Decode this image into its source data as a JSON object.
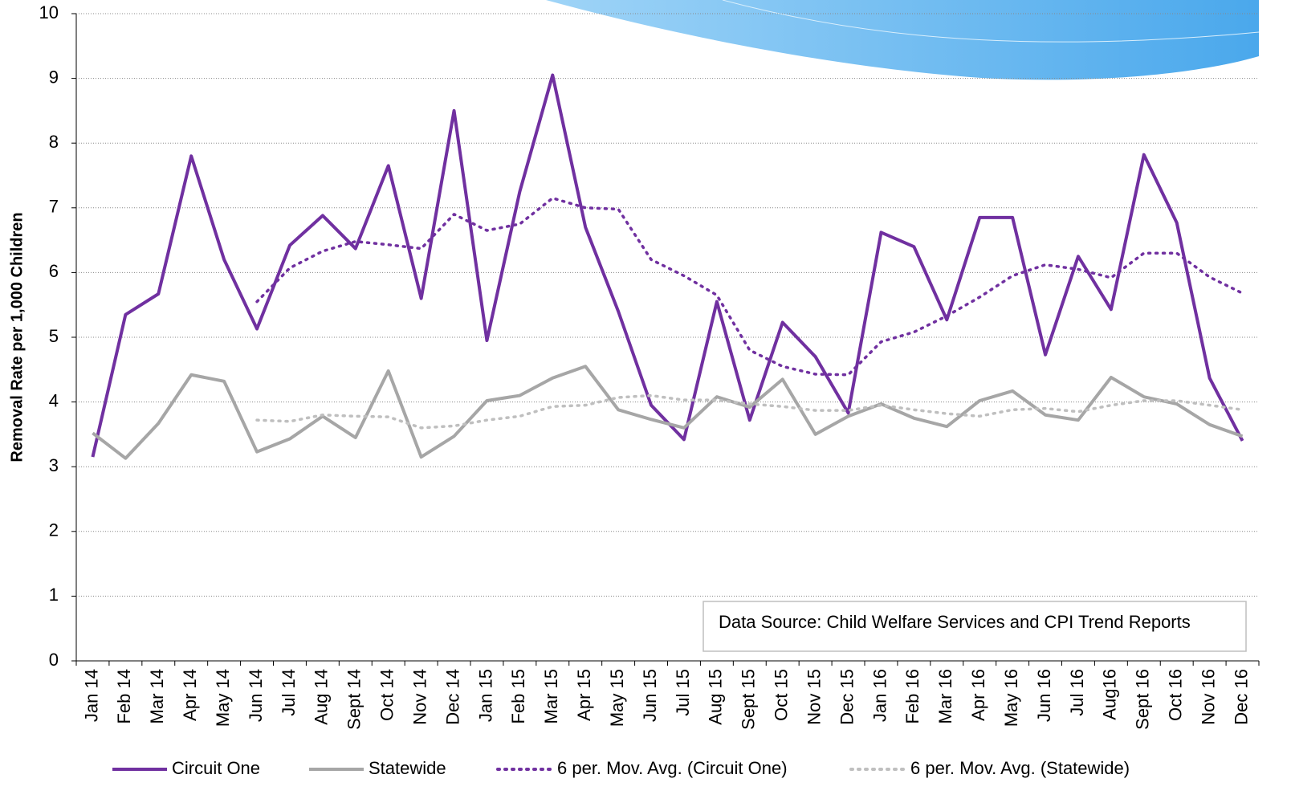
{
  "chart_data": {
    "type": "line",
    "y_label": "Removal Rate per 1,000 Children",
    "annotation": "Data Source:  Child Welfare Services and CPI Trend Reports",
    "categories": [
      "Jan 14",
      "Feb 14",
      "Mar 14",
      "Apr 14",
      "May 14",
      "Jun 14",
      "Jul 14",
      "Aug 14",
      "Sept 14",
      "Oct 14",
      "Nov 14",
      "Dec 14",
      "Jan 15",
      "Feb 15",
      "Mar 15",
      "Apr 15",
      "May 15",
      "Jun 15",
      "Jul 15",
      "Aug 15",
      "Sept 15",
      "Oct 15",
      "Nov 15",
      "Dec 15",
      "Jan 16",
      "Feb 16",
      "Mar 16",
      "Apr 16",
      "May 16",
      "Jun 16",
      "Jul 16",
      "Aug16",
      "Sept 16",
      "Oct 16",
      "Nov 16",
      "Dec 16"
    ],
    "series": [
      {
        "name": "Circuit One",
        "color": "#7030a0",
        "style": "solid",
        "values": [
          3.15,
          5.35,
          5.67,
          7.8,
          6.2,
          5.13,
          6.42,
          6.88,
          6.37,
          7.65,
          5.6,
          8.5,
          4.95,
          7.25,
          9.05,
          6.7,
          5.4,
          3.95,
          3.42,
          5.55,
          3.72,
          5.23,
          4.7,
          3.83,
          6.62,
          6.4,
          5.27,
          6.85,
          6.85,
          4.73,
          6.25,
          5.43,
          7.82,
          6.77,
          4.37,
          3.4
        ]
      },
      {
        "name": "Statewide",
        "color": "#a6a6a6",
        "style": "solid",
        "values": [
          3.52,
          3.13,
          3.67,
          4.42,
          4.32,
          3.23,
          3.43,
          3.78,
          3.45,
          4.48,
          3.15,
          3.47,
          4.02,
          4.1,
          4.37,
          4.55,
          3.88,
          3.73,
          3.6,
          4.08,
          3.92,
          4.35,
          3.5,
          3.78,
          3.97,
          3.75,
          3.62,
          4.02,
          4.17,
          3.8,
          3.72,
          4.38,
          4.08,
          3.97,
          3.65,
          3.47
        ]
      },
      {
        "name": "6 per. Mov. Avg. (Circuit One)",
        "color": "#7030a0",
        "style": "dotted",
        "values": [
          null,
          null,
          null,
          null,
          null,
          5.55,
          6.07,
          6.33,
          6.48,
          6.43,
          6.37,
          6.9,
          6.65,
          6.75,
          7.15,
          7.0,
          6.98,
          6.2,
          5.95,
          5.65,
          4.8,
          4.55,
          4.43,
          4.42,
          4.93,
          5.08,
          5.33,
          5.62,
          5.95,
          6.12,
          6.05,
          5.92,
          6.3,
          6.3,
          5.93,
          5.68
        ]
      },
      {
        "name": "6 per. Mov. Avg. (Statewide)",
        "color": "#bfbfbf",
        "style": "dotted",
        "values": [
          null,
          null,
          null,
          null,
          null,
          3.72,
          3.7,
          3.8,
          3.78,
          3.77,
          3.6,
          3.63,
          3.72,
          3.78,
          3.93,
          3.95,
          4.07,
          4.1,
          4.03,
          4.03,
          3.97,
          3.93,
          3.87,
          3.87,
          3.95,
          3.88,
          3.82,
          3.78,
          3.88,
          3.9,
          3.85,
          3.95,
          4.02,
          4.02,
          3.95,
          3.88
        ]
      }
    ],
    "ylim": [
      0,
      10
    ],
    "yticks": [
      0,
      1,
      2,
      3,
      4,
      5,
      6,
      7,
      8,
      9,
      10
    ],
    "grid": true,
    "legend": "bottom"
  }
}
